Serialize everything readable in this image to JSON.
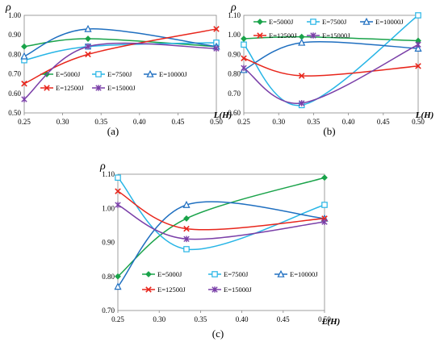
{
  "colors": {
    "E=5000J": "#1aa34a",
    "E=7500J": "#27b5e6",
    "E=10000J": "#1f6fc0",
    "E=12500J": "#e8261c",
    "E=15000J": "#7a3fa8"
  },
  "chart_data": [
    {
      "type": "line",
      "panel_label": "(a)",
      "ylabel": "ρ",
      "xlabel": "L(H)",
      "x_ticks": [
        "0.25",
        "0.30",
        "0.35",
        "0.40",
        "0.45",
        "0.50"
      ],
      "y_ticks": [
        "0.50",
        "0.60",
        "0.70",
        "0.80",
        "0.90",
        "1.00"
      ],
      "xlim": [
        0.25,
        0.5
      ],
      "ylim": [
        0.5,
        1.0
      ],
      "grid": false,
      "legend": "center, 3 columns",
      "x": [
        0.25,
        0.333,
        0.5
      ],
      "series": [
        {
          "name": "E=5000J",
          "marker": "diamond",
          "values": [
            0.84,
            0.88,
            0.84
          ]
        },
        {
          "name": "E=7500J",
          "marker": "square",
          "values": [
            0.77,
            0.84,
            0.86
          ]
        },
        {
          "name": "E=10000J",
          "marker": "triangle",
          "values": [
            0.79,
            0.93,
            0.84
          ]
        },
        {
          "name": "E=12500J",
          "marker": "x",
          "values": [
            0.65,
            0.8,
            0.93
          ]
        },
        {
          "name": "E=15000J",
          "marker": "asterisk",
          "values": [
            0.57,
            0.84,
            0.83
          ]
        }
      ]
    },
    {
      "type": "line",
      "panel_label": "(b)",
      "ylabel": "ρ",
      "xlabel": "L(H)",
      "x_ticks": [
        "0.25",
        "0.30",
        "0.35",
        "0.40",
        "0.45",
        "0.50"
      ],
      "y_ticks": [
        "0.60",
        "0.70",
        "0.80",
        "0.90",
        "1.00",
        "1.10"
      ],
      "xlim": [
        0.25,
        0.5
      ],
      "ylim": [
        0.6,
        1.1
      ],
      "grid": false,
      "legend": "top, 3 columns",
      "x": [
        0.25,
        0.333,
        0.5
      ],
      "series": [
        {
          "name": "E=5000J",
          "marker": "diamond",
          "values": [
            0.98,
            0.99,
            0.97
          ]
        },
        {
          "name": "E=7500J",
          "marker": "square",
          "values": [
            0.95,
            0.64,
            1.1
          ]
        },
        {
          "name": "E=10000J",
          "marker": "triangle",
          "values": [
            0.82,
            0.96,
            0.93
          ]
        },
        {
          "name": "E=12500J",
          "marker": "x",
          "values": [
            0.88,
            0.79,
            0.84
          ]
        },
        {
          "name": "E=15000J",
          "marker": "asterisk",
          "values": [
            0.83,
            0.65,
            0.95
          ]
        }
      ]
    },
    {
      "type": "line",
      "panel_label": "(c)",
      "ylabel": "ρ",
      "xlabel": "L(H)",
      "x_ticks": [
        "0.25",
        "0.30",
        "0.35",
        "0.40",
        "0.45",
        "0.50"
      ],
      "y_ticks": [
        "0.70",
        "0.80",
        "0.90",
        "1.00",
        "1.10"
      ],
      "xlim": [
        0.25,
        0.5
      ],
      "ylim": [
        0.7,
        1.1
      ],
      "grid": false,
      "legend": "bottom, 3 columns",
      "x": [
        0.25,
        0.333,
        0.5
      ],
      "series": [
        {
          "name": "E=5000J",
          "marker": "diamond",
          "values": [
            0.8,
            0.97,
            1.09
          ]
        },
        {
          "name": "E=7500J",
          "marker": "square",
          "values": [
            1.09,
            0.88,
            1.01
          ]
        },
        {
          "name": "E=10000J",
          "marker": "triangle",
          "values": [
            0.77,
            1.01,
            0.97
          ]
        },
        {
          "name": "E=12500J",
          "marker": "x",
          "values": [
            1.05,
            0.94,
            0.97
          ]
        },
        {
          "name": "E=15000J",
          "marker": "asterisk",
          "values": [
            1.01,
            0.91,
            0.96
          ]
        }
      ]
    }
  ]
}
